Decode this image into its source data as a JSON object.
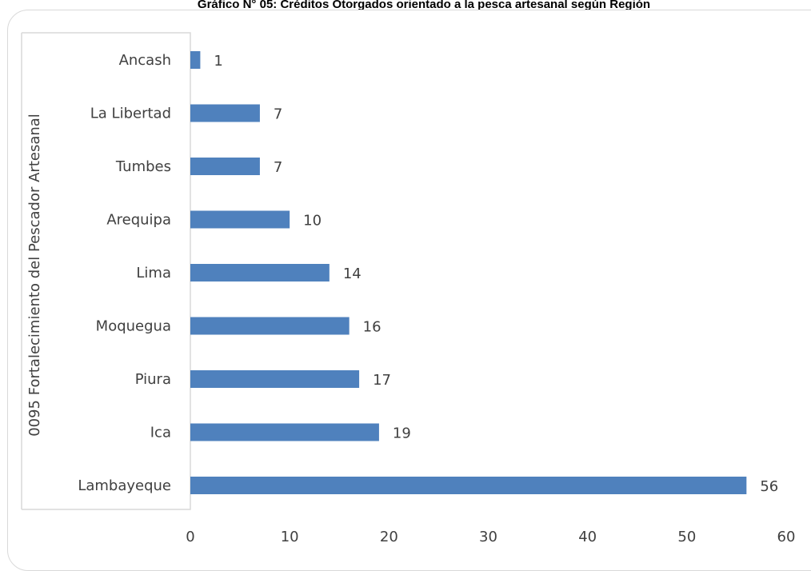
{
  "chart_data": {
    "type": "bar",
    "orientation": "horizontal",
    "title": "Gráfico N° 05: Créditos Otorgados orientado a la pesca artesanal según Región",
    "ylabel": "0095 Fortalecimiento del Pescador Artesanal",
    "xlabel": "",
    "categories": [
      "Ancash",
      "La Libertad",
      "Tumbes",
      "Arequipa",
      "Lima",
      "Moquegua",
      "Piura",
      "Ica",
      "Lambayeque"
    ],
    "values": [
      1,
      7,
      7,
      10,
      14,
      16,
      17,
      19,
      56
    ],
    "xlim": [
      0,
      60
    ],
    "xticks": [
      0,
      10,
      20,
      30,
      40,
      50,
      60
    ],
    "bar_color": "#4f81bd",
    "data_labels": true,
    "grid": false,
    "legend": "none"
  }
}
